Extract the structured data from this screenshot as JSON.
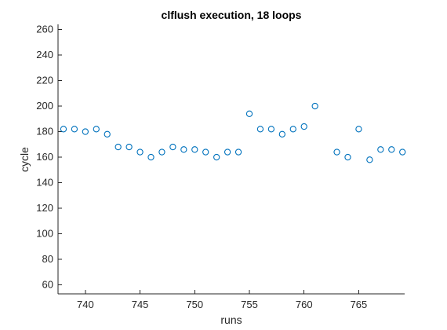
{
  "chart_data": {
    "type": "scatter",
    "title": "clflush execution, 18 loops",
    "xlabel": "runs",
    "ylabel": "cycle",
    "xlim": [
      737.5,
      769.2
    ],
    "ylim": [
      53,
      264
    ],
    "x_ticks": [
      740,
      745,
      750,
      755,
      760,
      765
    ],
    "x_tick_labels": [
      "740",
      "745",
      "750",
      "755",
      "760",
      "765"
    ],
    "y_ticks": [
      60,
      80,
      100,
      120,
      140,
      160,
      180,
      200,
      220,
      240,
      260
    ],
    "y_tick_labels": [
      "60",
      "80",
      "100",
      "120",
      "140",
      "160",
      "180",
      "200",
      "220",
      "240",
      "260"
    ],
    "grid": false,
    "marker": "open-circle",
    "series": [
      {
        "x": [
          738,
          739,
          740,
          741,
          742,
          743,
          744,
          745,
          746,
          747,
          748,
          749,
          750,
          751,
          752,
          753,
          754,
          755,
          756,
          757,
          758,
          759,
          760,
          761,
          763,
          764,
          765,
          766,
          767,
          768,
          769
        ],
        "y": [
          182,
          182,
          180,
          182,
          178,
          168,
          168,
          164,
          160,
          164,
          168,
          166,
          166,
          164,
          160,
          164,
          164,
          194,
          182,
          182,
          178,
          182,
          184,
          200,
          164,
          160,
          182,
          158,
          166,
          166,
          164
        ],
        "color": "#0072BD"
      }
    ]
  }
}
